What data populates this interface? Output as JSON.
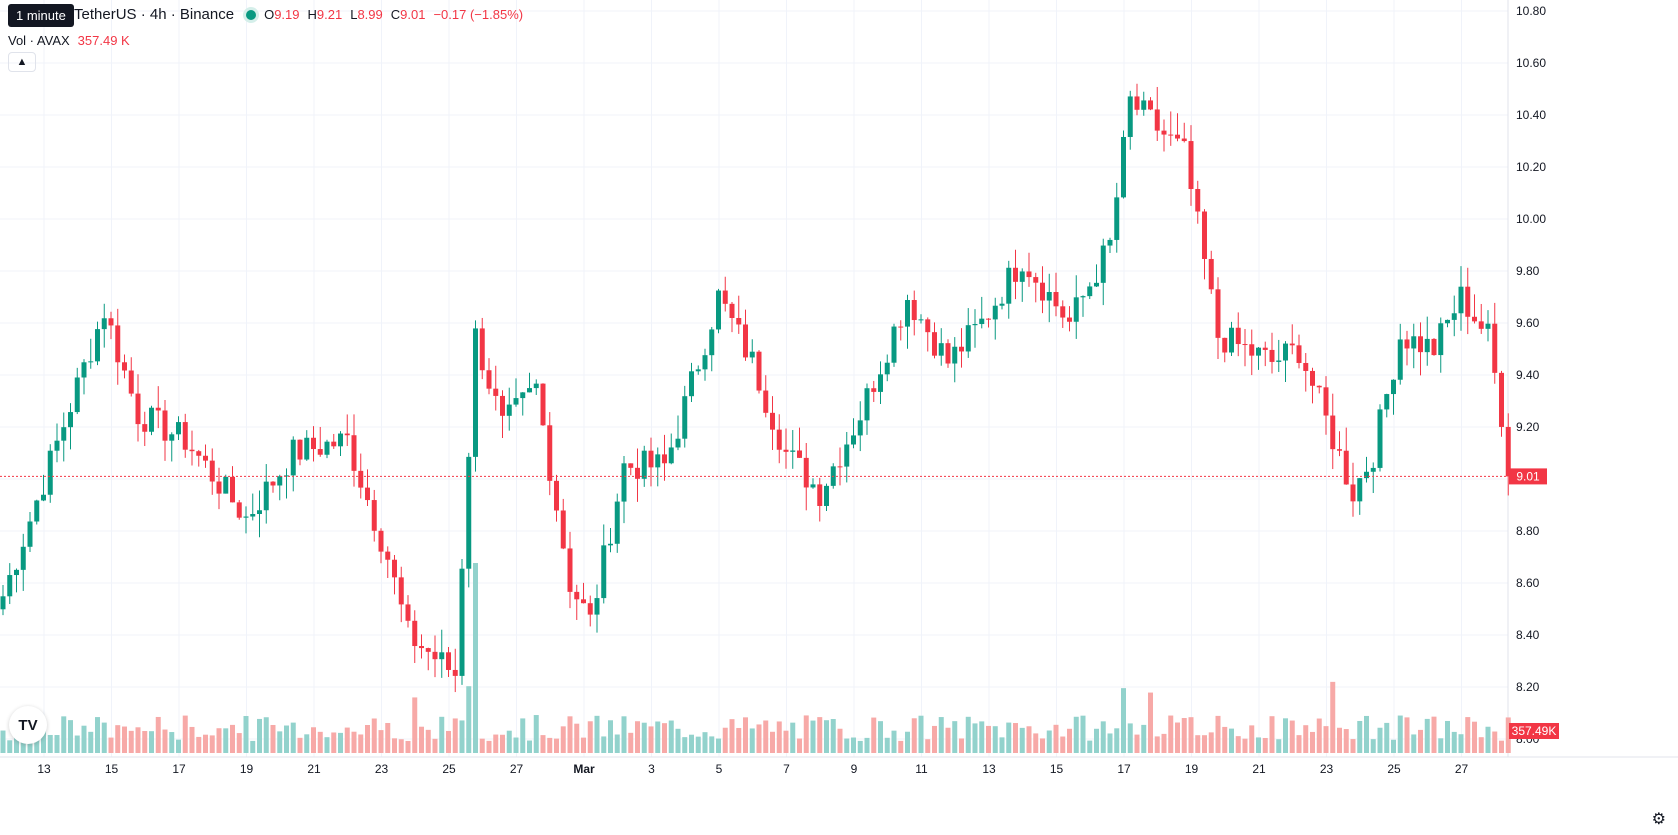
{
  "tooltip": "1 minute",
  "header": {
    "symbol": "TetherUS · 4h · Binance",
    "o_label": "O",
    "o_value": "9.19",
    "h_label": "H",
    "h_value": "9.21",
    "l_label": "L",
    "l_value": "8.99",
    "c_label": "C",
    "c_value": "9.01",
    "change": "−0.17 (−1.85%)"
  },
  "volume": {
    "label": "Vol · AVAX",
    "value": "357.49 K"
  },
  "collapse_icon": "chevron-up-icon",
  "logo_text": "TV",
  "colors": {
    "up": "#089981",
    "down": "#f23645",
    "up_vol": "#92d2cc",
    "down_vol": "#f7a9a7",
    "grid": "#f0f3fa"
  },
  "chart_data": {
    "type": "candlestick",
    "y_axis": {
      "ticks": [
        "10.80",
        "10.60",
        "10.40",
        "10.20",
        "10.00",
        "9.80",
        "9.60",
        "9.40",
        "9.20",
        "9.00",
        "8.80",
        "8.60",
        "8.40",
        "8.20",
        "8.00"
      ],
      "min": 8.0,
      "max": 10.8
    },
    "x_axis_labels": [
      "13",
      "15",
      "17",
      "19",
      "21",
      "23",
      "25",
      "27",
      "Mar",
      "3",
      "5",
      "7",
      "9",
      "11",
      "13",
      "15",
      "17",
      "19",
      "21",
      "23",
      "25",
      "27"
    ],
    "last_price": "9.01",
    "last_volume": "357.49K",
    "price_keypoints": [
      [
        0,
        8.55
      ],
      [
        15,
        9.65
      ],
      [
        20,
        9.25
      ],
      [
        27,
        9.15
      ],
      [
        36,
        8.85
      ],
      [
        43,
        9.1
      ],
      [
        51,
        9.15
      ],
      [
        57,
        8.7
      ],
      [
        60,
        8.4
      ],
      [
        67,
        8.25
      ],
      [
        70,
        9.55
      ],
      [
        74,
        9.2
      ],
      [
        79,
        9.35
      ],
      [
        84,
        8.6
      ],
      [
        87,
        8.45
      ],
      [
        92,
        9.05
      ],
      [
        98,
        9.05
      ],
      [
        100,
        9.2
      ],
      [
        106,
        9.7
      ],
      [
        111,
        9.45
      ],
      [
        116,
        9.1
      ],
      [
        121,
        8.95
      ],
      [
        127,
        9.25
      ],
      [
        134,
        9.7
      ],
      [
        140,
        9.45
      ],
      [
        145,
        9.6
      ],
      [
        151,
        9.85
      ],
      [
        158,
        9.6
      ],
      [
        164,
        9.9
      ],
      [
        167,
        10.45
      ],
      [
        175,
        10.25
      ],
      [
        180,
        9.55
      ],
      [
        188,
        9.45
      ],
      [
        192,
        9.5
      ],
      [
        200,
        8.95
      ],
      [
        203,
        9.1
      ],
      [
        207,
        9.55
      ],
      [
        212,
        9.5
      ],
      [
        216,
        9.7
      ],
      [
        220,
        9.55
      ],
      [
        222,
        9.25
      ],
      [
        223,
        9.01
      ]
    ],
    "volume_pattern": "small bars with tall spikes near days 23, 25 and Mar 17"
  }
}
